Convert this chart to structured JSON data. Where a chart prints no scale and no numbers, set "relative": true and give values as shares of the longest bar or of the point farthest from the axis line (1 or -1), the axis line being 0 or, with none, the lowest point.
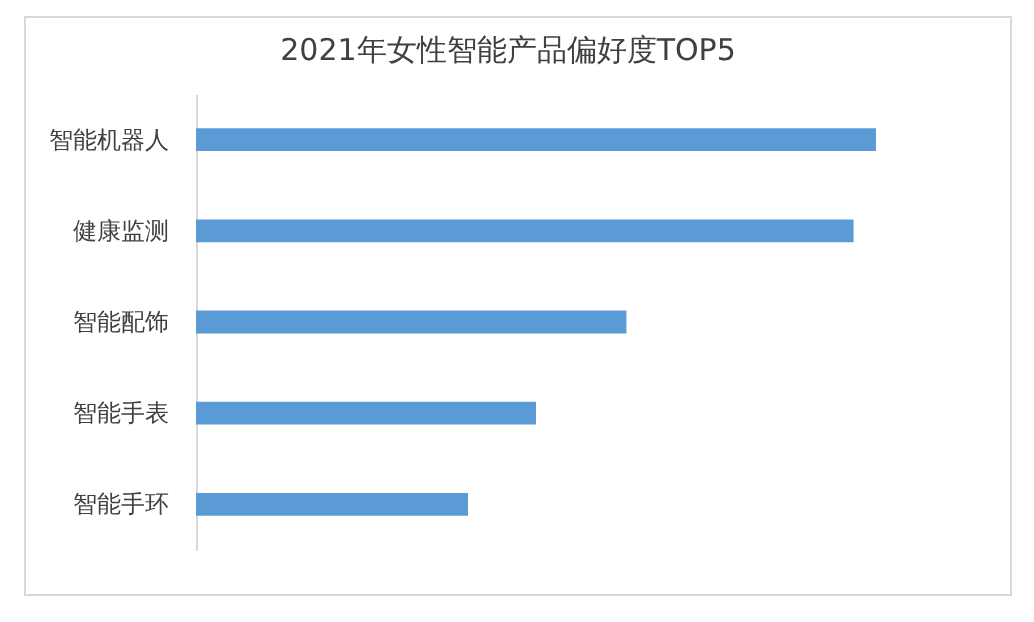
{
  "chart_data": {
    "type": "bar",
    "title": "2021年女性智能产品偏好度TOP5",
    "orientation": "horizontal",
    "relative": true,
    "categories": [
      "智能机器人",
      "健康监测",
      "智能配饰",
      "智能手表",
      "智能手环"
    ],
    "values": [
      1,
      0.967,
      0.633,
      0.5,
      0.4
    ],
    "color": "#5b9bd5",
    "grid": false
  }
}
